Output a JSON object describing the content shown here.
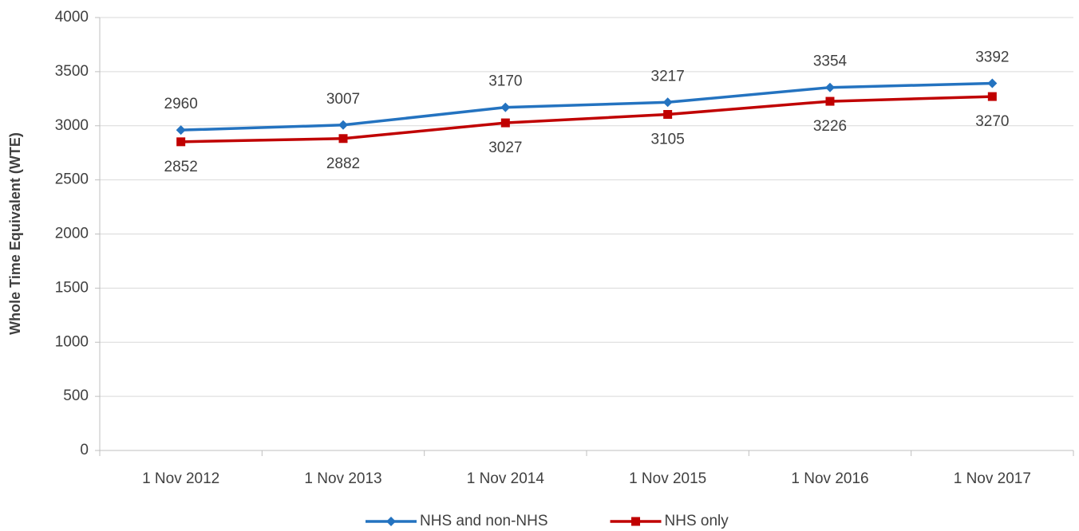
{
  "chart_data": {
    "type": "line",
    "y_label": "Whole Time Equivalent (WTE)",
    "categories": [
      "1 Nov 2012",
      "1 Nov 2013",
      "1 Nov 2014",
      "1 Nov 2015",
      "1 Nov 2016",
      "1 Nov 2017"
    ],
    "series": [
      {
        "name": "NHS and non-NHS",
        "color": "#2473c0",
        "marker": "diamond",
        "values": [
          2960,
          3007,
          3170,
          3217,
          3354,
          3392
        ]
      },
      {
        "name": "NHS only",
        "color": "#c00000",
        "marker": "square",
        "values": [
          2852,
          2882,
          3027,
          3105,
          3226,
          3270
        ]
      }
    ],
    "ylim": [
      0,
      4000
    ],
    "yticks": [
      0,
      500,
      1000,
      1500,
      2000,
      2500,
      3000,
      3500,
      4000
    ],
    "grid": true,
    "legend": "bottom"
  }
}
